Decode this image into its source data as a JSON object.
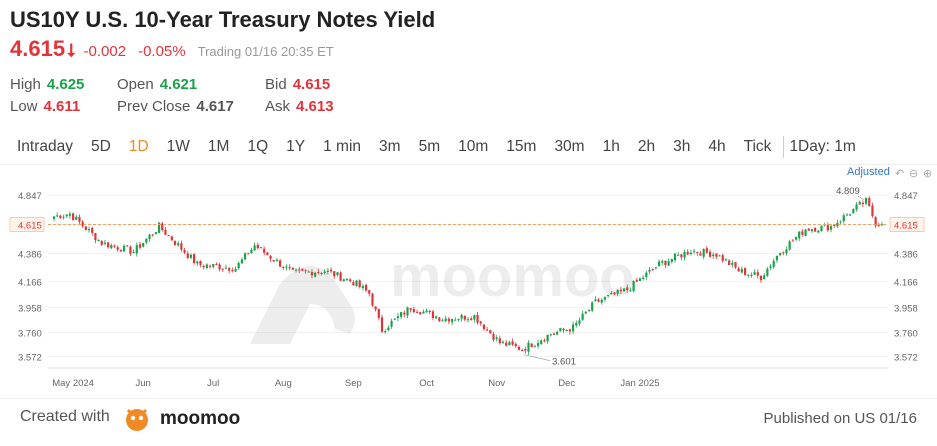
{
  "header": {
    "title": "US10Y U.S. 10-Year Treasury Notes Yield",
    "price": "4.615",
    "change": "-0.002",
    "change_pct": "-0.05%",
    "status": "Trading 01/16 20:35 ET"
  },
  "stats": {
    "high_label": "High",
    "high_value": "4.625",
    "low_label": "Low",
    "low_value": "4.611",
    "open_label": "Open",
    "open_value": "4.621",
    "prev_close_label": "Prev Close",
    "prev_close_value": "4.617",
    "bid_label": "Bid",
    "bid_value": "4.615",
    "ask_label": "Ask",
    "ask_value": "4.613"
  },
  "tabs": [
    {
      "label": "Intraday",
      "active": false
    },
    {
      "label": "5D",
      "active": false
    },
    {
      "label": "1D",
      "active": true
    },
    {
      "label": "1W",
      "active": false
    },
    {
      "label": "1M",
      "active": false
    },
    {
      "label": "1Q",
      "active": false
    },
    {
      "label": "1Y",
      "active": false
    },
    {
      "label": "1 min",
      "active": false
    },
    {
      "label": "3m",
      "active": false
    },
    {
      "label": "5m",
      "active": false
    },
    {
      "label": "10m",
      "active": false
    },
    {
      "label": "15m",
      "active": false
    },
    {
      "label": "30m",
      "active": false
    },
    {
      "label": "1h",
      "active": false
    },
    {
      "label": "2h",
      "active": false
    },
    {
      "label": "3h",
      "active": false
    },
    {
      "label": "4h",
      "active": false
    },
    {
      "label": "Tick",
      "active": false
    },
    {
      "label": "1Day: 1m",
      "active": false
    }
  ],
  "chart_toolbar": {
    "adjusted_label": "Adjusted"
  },
  "colors": {
    "up": "#1aa34a",
    "down": "#e0343a",
    "accent": "#f08a24",
    "price_line": "#f0a060"
  },
  "chart_data": {
    "type": "candlestick",
    "title": "",
    "xlabel": "",
    "ylabel": "",
    "ylim": [
      3.48,
      4.92
    ],
    "y_ticks": [
      "4.847",
      "4.615",
      "4.386",
      "4.166",
      "3.958",
      "3.760",
      "3.572"
    ],
    "x_tick_labels": [
      "May 2024",
      "Jun",
      "Jul",
      "Aug",
      "Sep",
      "Oct",
      "Nov",
      "Dec",
      "Jan 2025"
    ],
    "current_price": 4.615,
    "annotations": [
      {
        "label": "4.809",
        "value": 4.809
      },
      {
        "label": "3.601",
        "value": 3.601
      }
    ],
    "close_anchors": [
      {
        "x": 0,
        "close": 4.68
      },
      {
        "x": 5,
        "close": 4.7
      },
      {
        "x": 15,
        "close": 4.47
      },
      {
        "x": 25,
        "close": 4.4
      },
      {
        "x": 33,
        "close": 4.6
      },
      {
        "x": 45,
        "close": 4.3
      },
      {
        "x": 57,
        "close": 4.27
      },
      {
        "x": 63,
        "close": 4.45
      },
      {
        "x": 75,
        "close": 4.23
      },
      {
        "x": 85,
        "close": 4.25
      },
      {
        "x": 94,
        "close": 4.16
      },
      {
        "x": 99,
        "close": 4.07
      },
      {
        "x": 103,
        "close": 3.78
      },
      {
        "x": 112,
        "close": 3.96
      },
      {
        "x": 122,
        "close": 3.87
      },
      {
        "x": 132,
        "close": 3.89
      },
      {
        "x": 140,
        "close": 3.68
      },
      {
        "x": 147,
        "close": 3.63
      },
      {
        "x": 156,
        "close": 3.75
      },
      {
        "x": 163,
        "close": 3.8
      },
      {
        "x": 170,
        "close": 4.0
      },
      {
        "x": 180,
        "close": 4.1
      },
      {
        "x": 190,
        "close": 4.3
      },
      {
        "x": 200,
        "close": 4.41
      },
      {
        "x": 208,
        "close": 4.38
      },
      {
        "x": 215,
        "close": 4.25
      },
      {
        "x": 222,
        "close": 4.2
      },
      {
        "x": 228,
        "close": 4.4
      },
      {
        "x": 236,
        "close": 4.58
      },
      {
        "x": 244,
        "close": 4.6
      },
      {
        "x": 252,
        "close": 4.75
      },
      {
        "x": 255,
        "close": 4.8
      },
      {
        "x": 258,
        "close": 4.63
      },
      {
        "x": 260,
        "close": 4.615
      }
    ]
  },
  "watermark": "moomoo",
  "footer": {
    "created_with": "Created with",
    "brand": "moomoo",
    "published": "Published on US 01/16"
  }
}
